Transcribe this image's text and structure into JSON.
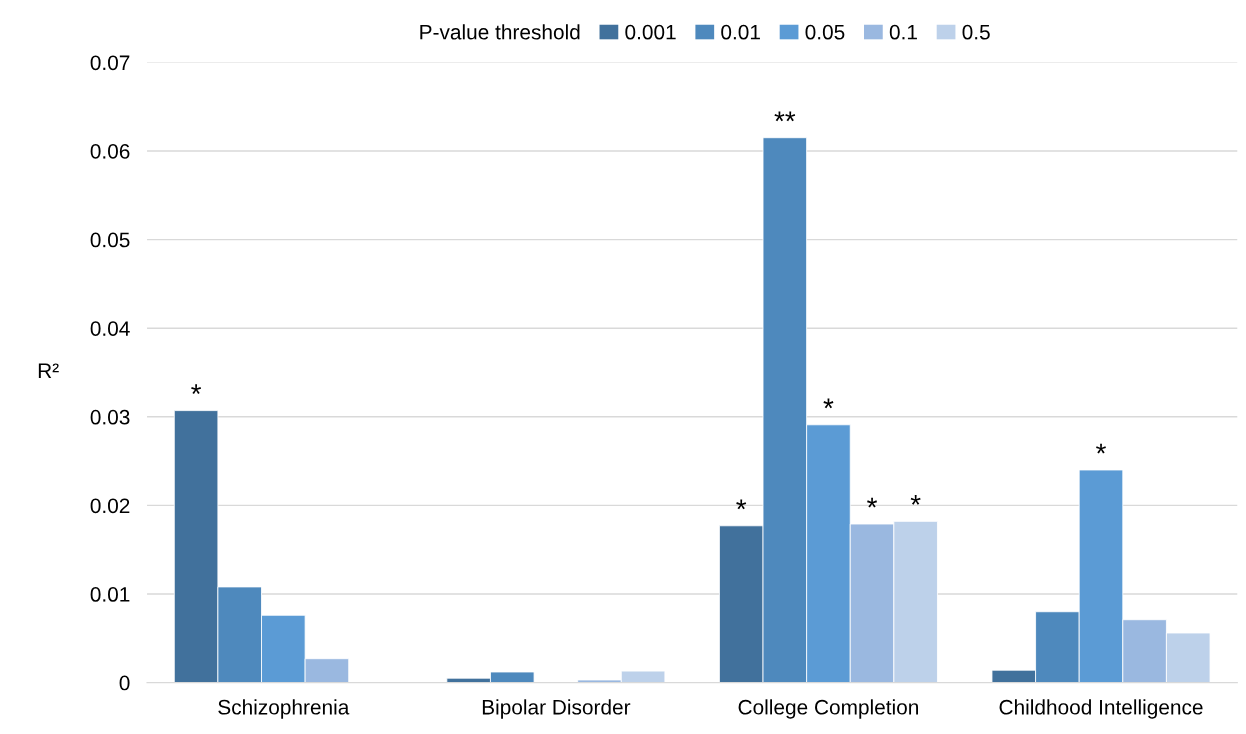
{
  "chart_data": {
    "type": "bar",
    "ylabel": "R²",
    "legend_title": "P-value threshold",
    "legend": "top",
    "categories": [
      "Schizophrenia",
      "Bipolar Disorder",
      "College Completion",
      "Childhood Intelligence"
    ],
    "series": [
      {
        "name": "0.001",
        "color": "#41719c",
        "values": [
          0.0307,
          0.0005,
          0.0177,
          0.0014
        ],
        "value_labels": [
          "*",
          null,
          "*",
          null
        ]
      },
      {
        "name": "0.01",
        "color": "#4e89bd",
        "values": [
          0.0108,
          0.0012,
          0.0615,
          0.008
        ],
        "value_labels": [
          null,
          null,
          "**",
          null
        ]
      },
      {
        "name": "0.05",
        "color": "#5b9bd5",
        "values": [
          0.0076,
          null,
          0.0291,
          0.024
        ],
        "value_labels": [
          null,
          null,
          "*",
          "*"
        ]
      },
      {
        "name": "0.1",
        "color": "#9ab8e0",
        "values": [
          0.0027,
          0.0003,
          0.0179,
          0.0071
        ],
        "value_labels": [
          null,
          null,
          "*",
          null
        ]
      },
      {
        "name": "0.5",
        "color": "#bdd1ea",
        "values": [
          null,
          0.0013,
          0.0182,
          0.0056
        ],
        "value_labels": [
          null,
          null,
          "*",
          null
        ]
      }
    ],
    "ylim": [
      0,
      0.07
    ],
    "yticks": [
      0,
      0.01,
      0.02,
      0.03,
      0.04,
      0.05,
      0.06,
      0.07
    ],
    "grid": "y"
  }
}
